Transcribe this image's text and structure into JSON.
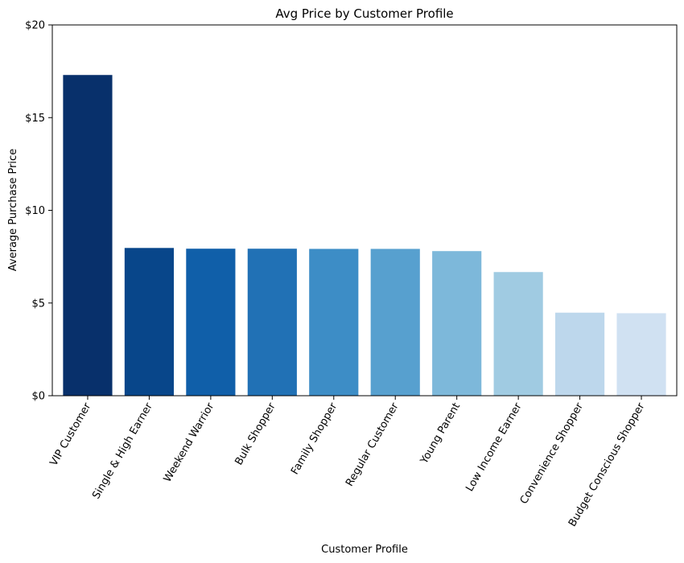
{
  "chart_data": {
    "type": "bar",
    "title": "Avg Price by Customer Profile",
    "xlabel": "Customer Profile",
    "ylabel": "Average Purchase Price",
    "ylim": [
      0,
      20
    ],
    "yticks": [
      0,
      5,
      10,
      15,
      20
    ],
    "ytick_labels": [
      "$0",
      "$5",
      "$10",
      "$15",
      "$20"
    ],
    "grid": false,
    "legend": "none",
    "categories": [
      "VIP Customer",
      "Single & High Earner",
      "Weekend Warrior",
      "Bulk Shopper",
      "Family Shopper",
      "Regular Customer",
      "Young Parent",
      "Low Income Earner",
      "Convenience Shopper",
      "Budget Conscious Shopper"
    ],
    "values": [
      17.3,
      7.97,
      7.93,
      7.93,
      7.92,
      7.92,
      7.8,
      6.67,
      4.48,
      4.45
    ],
    "colors": [
      "#08306b",
      "#08468a",
      "#105fa9",
      "#2171b5",
      "#3d8dc6",
      "#57a0cf",
      "#7db8da",
      "#a0cbe2",
      "#bdd7ec",
      "#d0e1f2"
    ],
    "x_tick_rotation": 60
  }
}
